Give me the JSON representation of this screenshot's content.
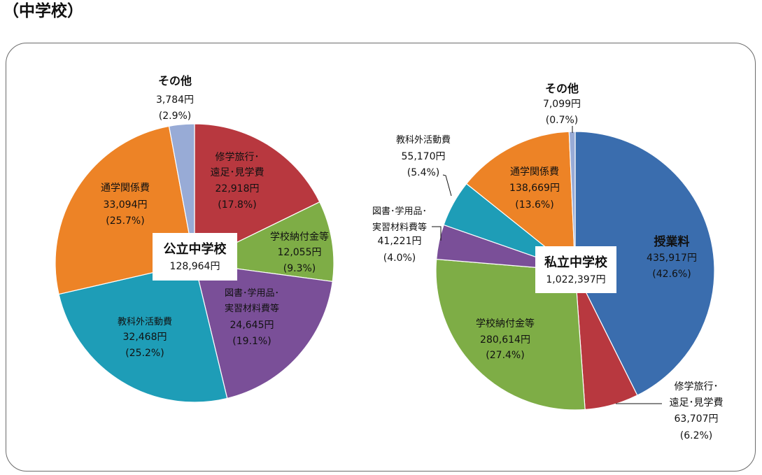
{
  "page": {
    "heading": "（中学校）"
  },
  "chart_data": [
    {
      "type": "pie",
      "title": "公立中学校",
      "total_text": "128,964円",
      "slices": [
        {
          "label": [
            "修学旅行･",
            "遠足･見学費"
          ],
          "value": 22918,
          "value_text": "22,918円",
          "percent": 17.8,
          "percent_text": "(17.8%)",
          "color": "#B8383F"
        },
        {
          "label": [
            "学校納付金等"
          ],
          "value": 12055,
          "value_text": "12,055円",
          "percent": 9.3,
          "percent_text": "(9.3%)",
          "color": "#7EAD46"
        },
        {
          "label": [
            "図書･学用品･",
            "実習材料費等"
          ],
          "value": 24645,
          "value_text": "24,645円",
          "percent": 19.1,
          "percent_text": "(19.1%)",
          "color": "#7A4F98"
        },
        {
          "label": [
            "教科外活動費"
          ],
          "value": 32468,
          "value_text": "32,468円",
          "percent": 25.2,
          "percent_text": "(25.2%)",
          "color": "#1E9DB7"
        },
        {
          "label": [
            "通学関係費"
          ],
          "value": 33094,
          "value_text": "33,094円",
          "percent": 25.7,
          "percent_text": "(25.7%)",
          "color": "#ED8326"
        },
        {
          "label": [
            "その他"
          ],
          "value": 3784,
          "value_text": "3,784円",
          "percent": 2.9,
          "percent_text": "(2.9%)",
          "color": "#98ABD6"
        }
      ]
    },
    {
      "type": "pie",
      "title": "私立中学校",
      "total_text": "1,022,397円",
      "slices": [
        {
          "label": [
            "授業料"
          ],
          "value": 435917,
          "value_text": "435,917円",
          "percent": 42.6,
          "percent_text": "(42.6%)",
          "color": "#3A6DAE"
        },
        {
          "label": [
            "修学旅行･",
            "遠足･見学費"
          ],
          "value": 63707,
          "value_text": "63,707円",
          "percent": 6.2,
          "percent_text": "(6.2%)",
          "color": "#B8383F"
        },
        {
          "label": [
            "学校納付金等"
          ],
          "value": 280614,
          "value_text": "280,614円",
          "percent": 27.4,
          "percent_text": "(27.4%)",
          "color": "#7EAD46"
        },
        {
          "label": [
            "図書･学用品･",
            "実習材料費等"
          ],
          "value": 41221,
          "value_text": "41,221円",
          "percent": 4.0,
          "percent_text": "(4.0%)",
          "color": "#7A4F98"
        },
        {
          "label": [
            "教科外活動費"
          ],
          "value": 55170,
          "value_text": "55,170円",
          "percent": 5.4,
          "percent_text": "(5.4%)",
          "color": "#1E9DB7"
        },
        {
          "label": [
            "通学関係費"
          ],
          "value": 138669,
          "value_text": "138,669円",
          "percent": 13.6,
          "percent_text": "(13.6%)",
          "color": "#ED8326"
        },
        {
          "label": [
            "その他"
          ],
          "value": 7099,
          "value_text": "7,099円",
          "percent": 0.7,
          "percent_text": "(0.7%)",
          "color": "#98ABD6"
        }
      ]
    }
  ]
}
